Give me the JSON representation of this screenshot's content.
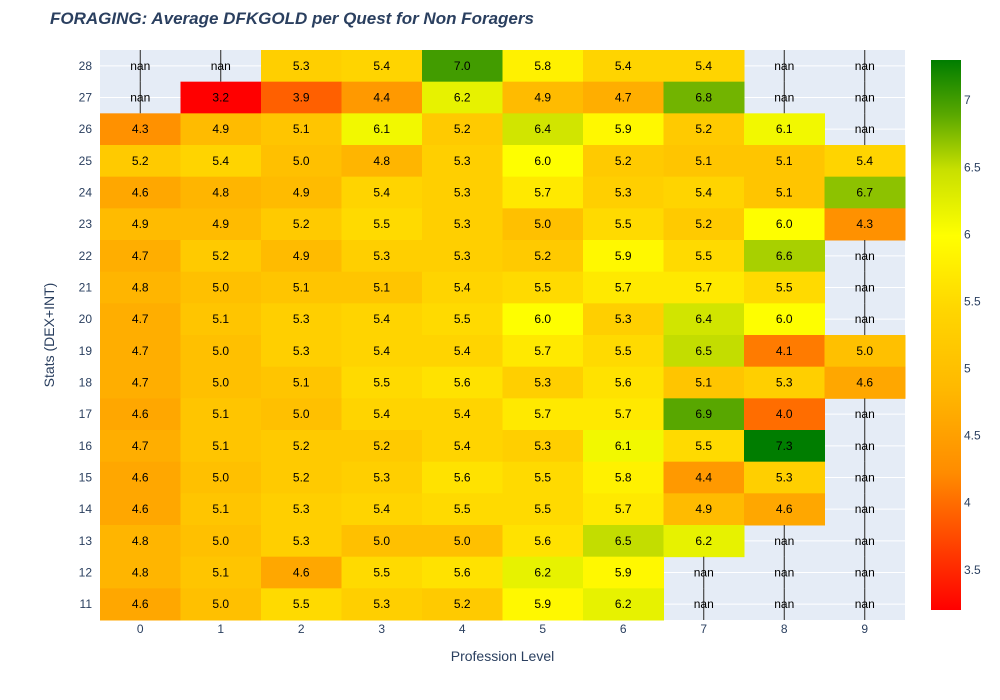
{
  "chart_data": {
    "type": "heatmap",
    "title": "FORAGING: Average DFKGOLD per Quest for Non Foragers",
    "xlabel": "Profession Level",
    "ylabel": "Stats (DEX+INT)",
    "x": [
      "0",
      "1",
      "2",
      "3",
      "4",
      "5",
      "6",
      "7",
      "8",
      "9"
    ],
    "y": [
      "28",
      "27",
      "26",
      "25",
      "24",
      "23",
      "22",
      "21",
      "20",
      "19",
      "18",
      "17",
      "16",
      "15",
      "14",
      "13",
      "12",
      "11"
    ],
    "z": [
      [
        null,
        null,
        5.3,
        5.4,
        7.0,
        5.8,
        5.4,
        5.4,
        null,
        null
      ],
      [
        null,
        3.2,
        3.9,
        4.4,
        6.2,
        4.9,
        4.7,
        6.8,
        null,
        null
      ],
      [
        4.3,
        4.9,
        5.1,
        6.1,
        5.2,
        6.4,
        5.9,
        5.2,
        6.1,
        null
      ],
      [
        5.2,
        5.4,
        5.0,
        4.8,
        5.3,
        6.0,
        5.2,
        5.1,
        5.1,
        5.4
      ],
      [
        4.6,
        4.8,
        4.9,
        5.4,
        5.3,
        5.7,
        5.3,
        5.4,
        5.1,
        6.7
      ],
      [
        4.9,
        4.9,
        5.2,
        5.5,
        5.3,
        5.0,
        5.5,
        5.2,
        6.0,
        4.3
      ],
      [
        4.7,
        5.2,
        4.9,
        5.3,
        5.3,
        5.2,
        5.9,
        5.5,
        6.6,
        null
      ],
      [
        4.8,
        5.0,
        5.1,
        5.1,
        5.4,
        5.5,
        5.7,
        5.7,
        5.5,
        null
      ],
      [
        4.7,
        5.1,
        5.3,
        5.4,
        5.5,
        6.0,
        5.3,
        6.4,
        6.0,
        null
      ],
      [
        4.7,
        5.0,
        5.3,
        5.4,
        5.4,
        5.7,
        5.5,
        6.5,
        4.1,
        5.0
      ],
      [
        4.7,
        5.0,
        5.1,
        5.5,
        5.6,
        5.3,
        5.6,
        5.1,
        5.3,
        4.6
      ],
      [
        4.6,
        5.1,
        5.0,
        5.4,
        5.4,
        5.7,
        5.7,
        6.9,
        4.0,
        null
      ],
      [
        4.7,
        5.1,
        5.2,
        5.2,
        5.4,
        5.3,
        6.1,
        5.5,
        7.3,
        null
      ],
      [
        4.6,
        5.0,
        5.2,
        5.3,
        5.6,
        5.5,
        5.8,
        4.4,
        5.3,
        null
      ],
      [
        4.6,
        5.1,
        5.3,
        5.4,
        5.5,
        5.5,
        5.7,
        4.9,
        4.6,
        null
      ],
      [
        4.8,
        5.0,
        5.3,
        5.0,
        5.0,
        5.6,
        6.5,
        6.2,
        null,
        null
      ],
      [
        4.8,
        5.1,
        4.6,
        5.5,
        5.6,
        6.2,
        5.9,
        null,
        null,
        null
      ],
      [
        4.6,
        5.0,
        5.5,
        5.3,
        5.2,
        5.9,
        6.2,
        null,
        null,
        null
      ]
    ],
    "missing_label": "nan",
    "zrange": [
      3.2,
      7.3
    ],
    "colorscale": [
      [
        0.0,
        "#ff0000"
      ],
      [
        0.25,
        "#ff8c00"
      ],
      [
        0.4,
        "#ffb800"
      ],
      [
        0.55,
        "#ffd700"
      ],
      [
        0.68,
        "#ffff00"
      ],
      [
        0.8,
        "#c8e000"
      ],
      [
        0.9,
        "#5aa800"
      ],
      [
        1.0,
        "#007d00"
      ]
    ],
    "colorbar_ticks": [
      "3.5",
      "4",
      "4.5",
      "5",
      "5.5",
      "6",
      "6.5",
      "7"
    ],
    "plot_bg": "#e5ecf6",
    "grid": true,
    "legend": "colorbar-right"
  }
}
